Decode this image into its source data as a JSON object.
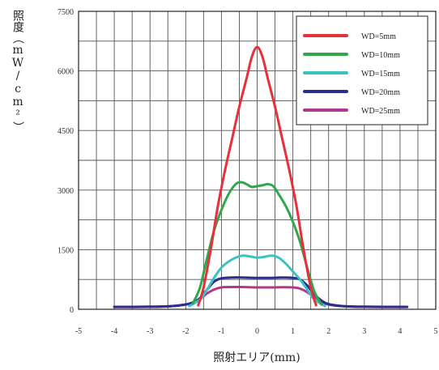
{
  "chart_data": {
    "type": "line",
    "xlabel": "照射エリア(mm)",
    "ylabel": "照度（mW/cm²）",
    "xlim": [
      -5,
      5
    ],
    "ylim": [
      0,
      7500
    ],
    "xticks": [
      -5,
      -4,
      -3,
      -2,
      -1,
      0,
      1,
      2,
      3,
      4,
      5
    ],
    "yticks": [
      0,
      1500,
      3000,
      4500,
      6000,
      7500
    ],
    "grid": true,
    "legend_position": "top-right",
    "series": [
      {
        "name": "WD=5mm",
        "color": "#e8303a",
        "x": [
          -1.65,
          -1.5,
          -1.3,
          -1.1,
          -0.9,
          -0.7,
          -0.5,
          -0.3,
          -0.15,
          0.0,
          0.15,
          0.3,
          0.5,
          0.7,
          0.9,
          1.1,
          1.3,
          1.5,
          1.65
        ],
        "y": [
          100,
          550,
          1500,
          2600,
          3500,
          4300,
          5100,
          5800,
          6350,
          6600,
          6350,
          5800,
          5100,
          4300,
          3500,
          2600,
          1500,
          550,
          100
        ]
      },
      {
        "name": "WD=10mm",
        "color": "#2ea84a",
        "x": [
          -1.8,
          -1.6,
          -1.4,
          -1.2,
          -1.0,
          -0.8,
          -0.6,
          -0.45,
          -0.3,
          -0.15,
          0.0,
          0.15,
          0.3,
          0.45,
          0.6,
          0.8,
          1.0,
          1.2,
          1.4,
          1.6,
          1.8
        ],
        "y": [
          150,
          550,
          1300,
          2000,
          2500,
          2900,
          3150,
          3200,
          3150,
          3080,
          3100,
          3120,
          3150,
          3100,
          2900,
          2600,
          2200,
          1700,
          1050,
          450,
          120
        ]
      },
      {
        "name": "WD=15mm",
        "color": "#3cc3c0",
        "x": [
          -1.9,
          -1.6,
          -1.4,
          -1.2,
          -1.0,
          -0.8,
          -0.6,
          -0.4,
          -0.2,
          0.0,
          0.2,
          0.4,
          0.6,
          0.8,
          1.0,
          1.2,
          1.4,
          1.6,
          1.9
        ],
        "y": [
          80,
          250,
          500,
          800,
          1050,
          1200,
          1300,
          1350,
          1330,
          1300,
          1320,
          1350,
          1300,
          1150,
          950,
          750,
          500,
          250,
          80
        ]
      },
      {
        "name": "WD=20mm",
        "color": "#2a2f8c",
        "x": [
          -4.0,
          -3.0,
          -2.4,
          -2.0,
          -1.8,
          -1.6,
          -1.4,
          -1.2,
          -1.0,
          -0.7,
          -0.4,
          0.0,
          0.4,
          0.7,
          1.0,
          1.2,
          1.4,
          1.6,
          1.8,
          2.0,
          2.4,
          3.0,
          4.2
        ],
        "y": [
          60,
          65,
          80,
          120,
          170,
          280,
          500,
          700,
          780,
          800,
          800,
          790,
          790,
          800,
          790,
          750,
          600,
          380,
          220,
          130,
          80,
          65,
          60
        ]
      },
      {
        "name": "WD=25mm",
        "color": "#b0388e",
        "x": [
          -4.0,
          -3.0,
          -2.4,
          -2.0,
          -1.8,
          -1.6,
          -1.4,
          -1.2,
          -1.0,
          -0.7,
          -0.4,
          0.0,
          0.4,
          0.7,
          1.0,
          1.2,
          1.4,
          1.6,
          1.8,
          2.0,
          2.4,
          3.0,
          4.2
        ],
        "y": [
          55,
          60,
          80,
          120,
          170,
          260,
          400,
          500,
          550,
          560,
          560,
          550,
          550,
          555,
          550,
          520,
          430,
          300,
          190,
          120,
          80,
          60,
          55
        ]
      }
    ]
  }
}
